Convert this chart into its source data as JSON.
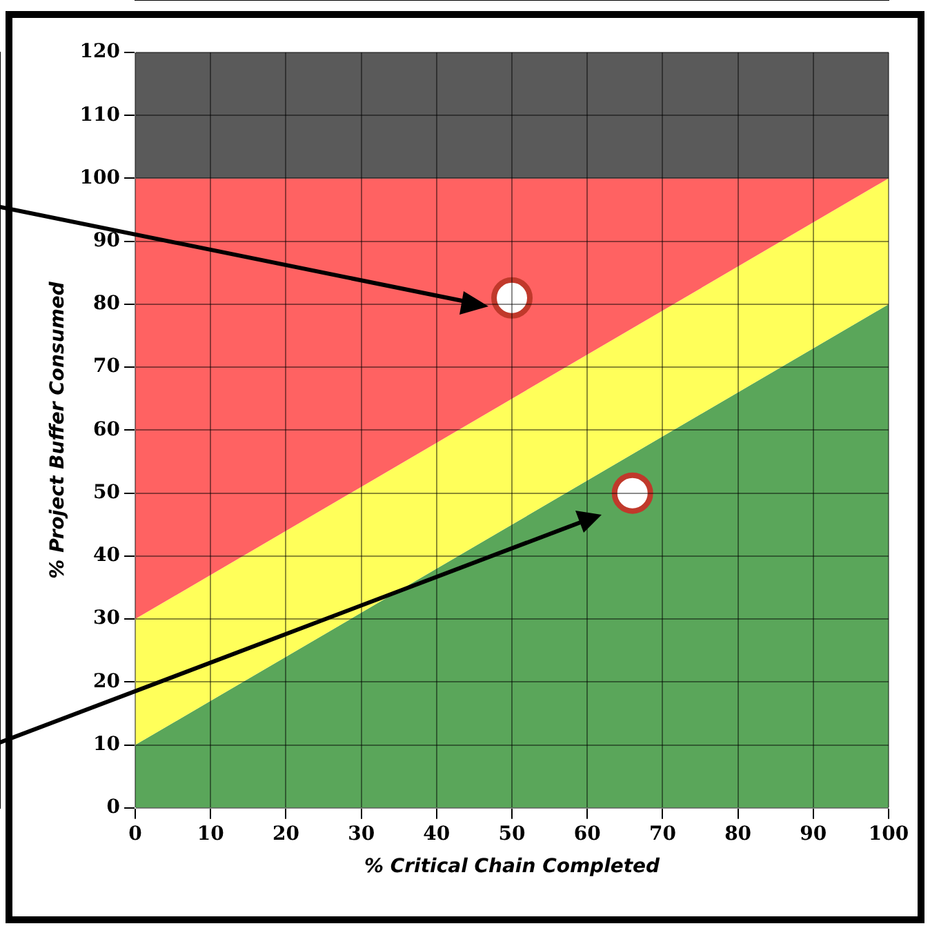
{
  "chart_data": {
    "type": "area",
    "xlabel": "% Critical Chain Completed",
    "ylabel": "% Project Buffer Consumed",
    "xlim": [
      0,
      100
    ],
    "ylim": [
      0,
      120
    ],
    "xticks": [
      0,
      10,
      20,
      30,
      40,
      50,
      60,
      70,
      80,
      90,
      100
    ],
    "yticks": [
      0,
      10,
      20,
      30,
      40,
      50,
      60,
      70,
      80,
      90,
      100,
      110,
      120
    ],
    "grid": true,
    "series": [
      {
        "color": "#5aa65a",
        "x": [
          0,
          100
        ],
        "values": [
          10,
          80
        ]
      },
      {
        "color": "#ffff5a",
        "x": [
          0,
          100
        ],
        "values": [
          30,
          100
        ]
      },
      {
        "color": "#ff6262",
        "x": [
          0,
          100
        ],
        "values": [
          100,
          100
        ]
      },
      {
        "color": "#5a5a5a",
        "x": [
          0,
          100
        ],
        "values": [
          120,
          120
        ]
      },
      {
        "type": "scatter",
        "color": "#ffffff",
        "marker": "circle",
        "x": [
          50,
          66
        ],
        "values": [
          81,
          50
        ]
      }
    ]
  }
}
